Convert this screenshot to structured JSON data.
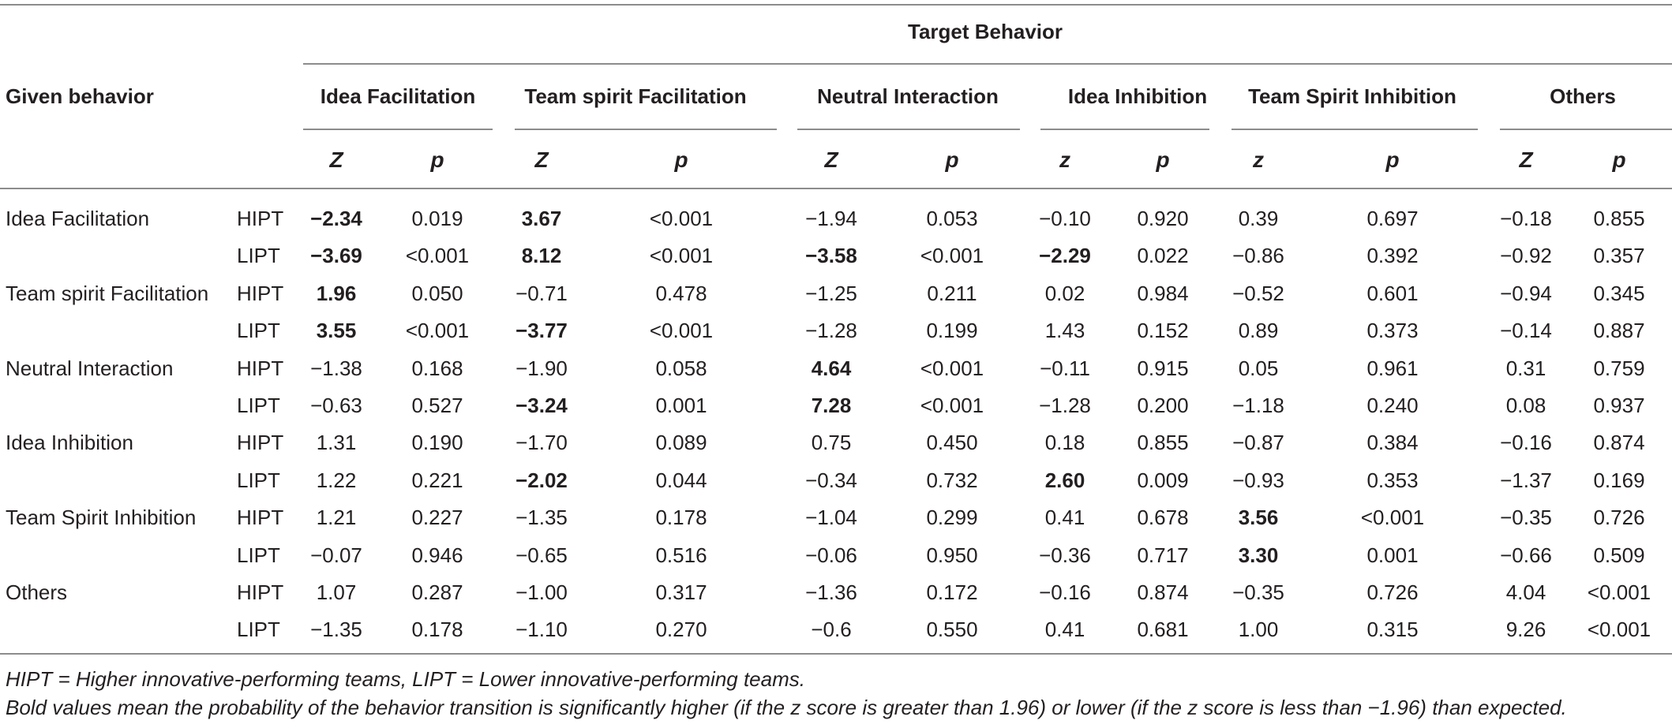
{
  "header": {
    "target_behavior": "Target Behavior",
    "given_behavior": "Given behavior",
    "groups": [
      "Idea Facilitation",
      "Team spirit Facilitation",
      "Neutral Interaction",
      "Idea Inhibition",
      "Team Spirit Inhibition",
      "Others"
    ],
    "subheaders": [
      "Z",
      "p",
      "Z",
      "p",
      "Z",
      "p",
      "z",
      "p",
      "z",
      "p",
      "Z",
      "p"
    ]
  },
  "rows": [
    {
      "label": "Idea Facilitation",
      "team": "HIPT",
      "values": [
        "−2.34",
        "0.019",
        "3.67",
        "<0.001",
        "−1.94",
        "0.053",
        "−0.10",
        "0.920",
        "0.39",
        "0.697",
        "−0.18",
        "0.855"
      ],
      "bold": [
        0,
        2
      ]
    },
    {
      "label": "",
      "team": "LIPT",
      "values": [
        "−3.69",
        "<0.001",
        "8.12",
        "<0.001",
        "−3.58",
        "<0.001",
        "−2.29",
        "0.022",
        "−0.86",
        "0.392",
        "−0.92",
        "0.357"
      ],
      "bold": [
        0,
        2,
        4,
        6
      ]
    },
    {
      "label": "Team spirit Facilitation",
      "team": "HIPT",
      "values": [
        "1.96",
        "0.050",
        "−0.71",
        "0.478",
        "−1.25",
        "0.211",
        "0.02",
        "0.984",
        "−0.52",
        "0.601",
        "−0.94",
        "0.345"
      ],
      "bold": [
        0
      ]
    },
    {
      "label": "",
      "team": "LIPT",
      "values": [
        "3.55",
        "<0.001",
        "−3.77",
        "<0.001",
        "−1.28",
        "0.199",
        "1.43",
        "0.152",
        "0.89",
        "0.373",
        "−0.14",
        "0.887"
      ],
      "bold": [
        0,
        2
      ]
    },
    {
      "label": "Neutral Interaction",
      "team": "HIPT",
      "values": [
        "−1.38",
        "0.168",
        "−1.90",
        "0.058",
        "4.64",
        "<0.001",
        "−0.11",
        "0.915",
        "0.05",
        "0.961",
        "0.31",
        "0.759"
      ],
      "bold": [
        4
      ]
    },
    {
      "label": "",
      "team": "LIPT",
      "values": [
        "−0.63",
        "0.527",
        "−3.24",
        "0.001",
        "7.28",
        "<0.001",
        "−1.28",
        "0.200",
        "−1.18",
        "0.240",
        "0.08",
        "0.937"
      ],
      "bold": [
        2,
        4
      ]
    },
    {
      "label": "Idea Inhibition",
      "team": "HIPT",
      "values": [
        "1.31",
        "0.190",
        "−1.70",
        "0.089",
        "0.75",
        "0.450",
        "0.18",
        "0.855",
        "−0.87",
        "0.384",
        "−0.16",
        "0.874"
      ],
      "bold": []
    },
    {
      "label": "",
      "team": "LIPT",
      "values": [
        "1.22",
        "0.221",
        "−2.02",
        "0.044",
        "−0.34",
        "0.732",
        "2.60",
        "0.009",
        "−0.93",
        "0.353",
        "−1.37",
        "0.169"
      ],
      "bold": [
        2,
        6
      ]
    },
    {
      "label": "Team Spirit Inhibition",
      "team": "HIPT",
      "values": [
        "1.21",
        "0.227",
        "−1.35",
        "0.178",
        "−1.04",
        "0.299",
        "0.41",
        "0.678",
        "3.56",
        "<0.001",
        "−0.35",
        "0.726"
      ],
      "bold": [
        8
      ]
    },
    {
      "label": "",
      "team": "LIPT",
      "values": [
        "−0.07",
        "0.946",
        "−0.65",
        "0.516",
        "−0.06",
        "0.950",
        "−0.36",
        "0.717",
        "3.30",
        "0.001",
        "−0.66",
        "0.509"
      ],
      "bold": [
        8
      ]
    },
    {
      "label": "Others",
      "team": "HIPT",
      "values": [
        "1.07",
        "0.287",
        "−1.00",
        "0.317",
        "−1.36",
        "0.172",
        "−0.16",
        "0.874",
        "−0.35",
        "0.726",
        "4.04",
        "<0.001"
      ],
      "bold": []
    },
    {
      "label": "",
      "team": "LIPT",
      "values": [
        "−1.35",
        "0.178",
        "−1.10",
        "0.270",
        "−0.6",
        "0.550",
        "0.41",
        "0.681",
        "1.00",
        "0.315",
        "9.26",
        "<0.001"
      ],
      "bold": []
    }
  ],
  "footnotes": [
    "HIPT =  Higher innovative-performing teams, LIPT =  Lower innovative-performing teams.",
    "Bold values mean the probability of the behavior transition is significantly higher (if the z score is greater than 1.96) or lower (if the z score is less than −1.96) than expected."
  ]
}
